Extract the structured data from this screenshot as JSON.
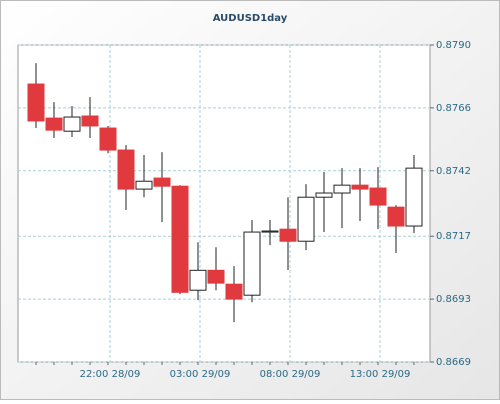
{
  "chart_data": {
    "type": "candlestick",
    "title": "AUDUSD1day",
    "categories": [
      null,
      null,
      null,
      null,
      "22:00 28/09",
      null,
      null,
      null,
      null,
      "03:00 29/09",
      null,
      null,
      null,
      null,
      "08:00 29/09",
      null,
      null,
      null,
      null,
      "13:00 29/09",
      null,
      null
    ],
    "open": [
      0.87751,
      0.87621,
      0.87571,
      0.87629,
      0.87583,
      0.87499,
      0.8735,
      0.87392,
      0.87361,
      0.86964,
      0.8704,
      0.86987,
      0.86945,
      0.87186,
      0.87197,
      0.87151,
      0.87319,
      0.87335,
      0.87365,
      0.87354,
      0.87281,
      0.87209
    ],
    "high": [
      0.87831,
      0.87682,
      0.87667,
      0.87701,
      0.87591,
      0.87518,
      0.8748,
      0.87491,
      0.87365,
      0.87147,
      0.87128,
      0.87056,
      0.87232,
      0.87232,
      0.87319,
      0.87369,
      0.87415,
      0.8743,
      0.8743,
      0.87434,
      0.87289,
      0.8748
    ],
    "low": [
      0.87583,
      0.87545,
      0.87549,
      0.87545,
      0.87487,
      0.8727,
      0.87319,
      0.87224,
      0.86949,
      0.86926,
      0.86964,
      0.86842,
      0.86918,
      0.87136,
      0.87041,
      0.87117,
      0.87186,
      0.87201,
      0.87228,
      0.87197,
      0.87106,
      0.87182
    ],
    "close": [
      0.8761,
      0.87575,
      0.87625,
      0.87591,
      0.87499,
      0.8735,
      0.8738,
      0.87361,
      0.86956,
      0.8704,
      0.86991,
      0.8693,
      0.87186,
      0.8719,
      0.87151,
      0.87319,
      0.87335,
      0.87365,
      0.8735,
      0.87289,
      0.87209,
      0.8743
    ],
    "up_color": "#ffffff",
    "down_color": "#e0393e",
    "ylim": [
      0.8669,
      0.879
    ],
    "yticks": [
      {
        "value": 0.879,
        "label": "0.8790"
      },
      0.8766,
      0.8742,
      0.8717,
      0.8693,
      0.8669
    ],
    "grid": true
  }
}
